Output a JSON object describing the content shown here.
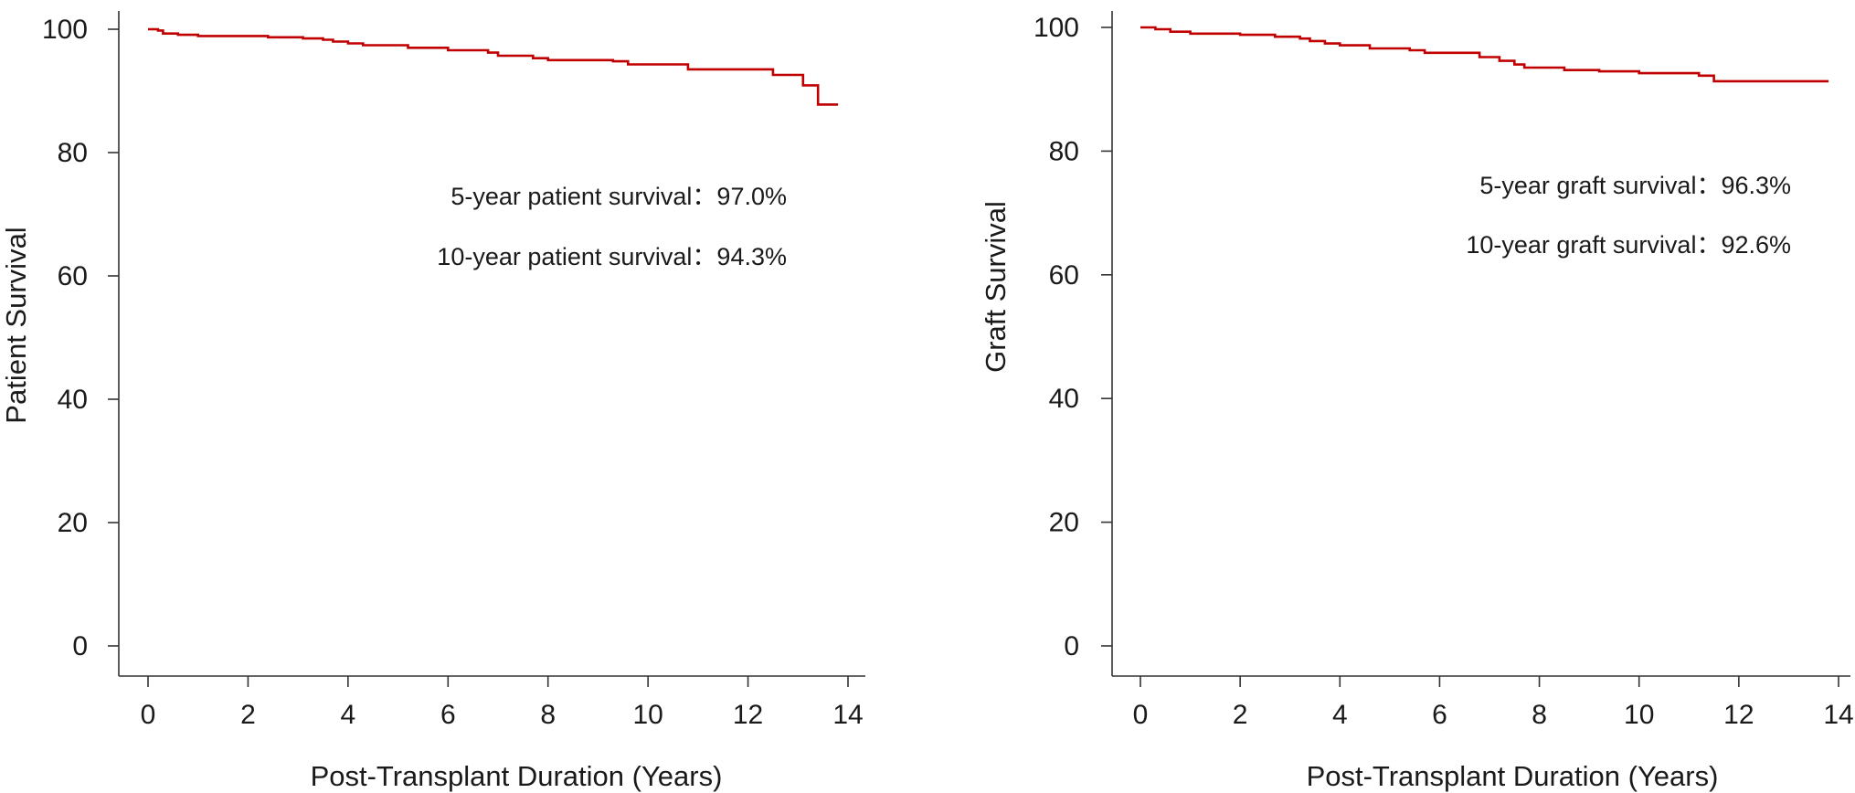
{
  "colors": {
    "curve": "#c00000",
    "axis": "#333333",
    "text": "#1a1a1a"
  },
  "chart_data": [
    {
      "type": "line",
      "step": true,
      "xlabel": "Post-Transplant Duration (Years)",
      "ylabel": "Patient Survival",
      "xlim": [
        0,
        14
      ],
      "ylim": [
        0,
        100
      ],
      "xticks": [
        0,
        2,
        4,
        6,
        8,
        10,
        12,
        14
      ],
      "yticks": [
        0,
        20,
        40,
        60,
        80,
        100
      ],
      "grid": false,
      "annotations": [
        "5-year patient survival：97.0%",
        "10-year patient survival：94.3%"
      ],
      "series": [
        {
          "x": [
            0,
            0.2,
            0.3,
            0.6,
            1.0,
            2.4,
            3.1,
            3.5,
            3.7,
            4.0,
            4.3,
            5.2,
            6.0,
            6.8,
            7.0,
            7.7,
            8.0,
            9.3,
            9.6,
            10.8,
            12.5,
            13.1,
            13.4,
            13.8
          ],
          "y": [
            100,
            99.8,
            99.3,
            99.1,
            98.9,
            98.7,
            98.5,
            98.3,
            98.0,
            97.7,
            97.4,
            97.0,
            96.6,
            96.2,
            95.7,
            95.3,
            95.0,
            94.8,
            94.3,
            93.5,
            92.6,
            90.9,
            87.8,
            87.8
          ]
        }
      ]
    },
    {
      "type": "line",
      "step": true,
      "xlabel": "Post-Transplant Duration (Years)",
      "ylabel": "Graft Survival",
      "xlim": [
        0,
        14
      ],
      "ylim": [
        0,
        100
      ],
      "xticks": [
        0,
        2,
        4,
        6,
        8,
        10,
        12,
        14
      ],
      "yticks": [
        0,
        20,
        40,
        60,
        80,
        100
      ],
      "grid": false,
      "annotations": [
        "5-year graft survival：96.3%",
        "10-year graft survival：92.6%"
      ],
      "series": [
        {
          "x": [
            0,
            0.3,
            0.6,
            1.0,
            2.0,
            2.7,
            3.2,
            3.4,
            3.7,
            4.0,
            4.6,
            5.4,
            5.7,
            6.8,
            7.2,
            7.5,
            7.7,
            8.5,
            9.2,
            10.0,
            11.2,
            11.5,
            13.8
          ],
          "y": [
            100,
            99.7,
            99.3,
            99.0,
            98.8,
            98.5,
            98.2,
            97.8,
            97.4,
            97.1,
            96.6,
            96.3,
            95.9,
            95.2,
            94.6,
            94.0,
            93.5,
            93.1,
            92.9,
            92.6,
            92.2,
            91.3,
            91.3
          ]
        }
      ]
    }
  ]
}
